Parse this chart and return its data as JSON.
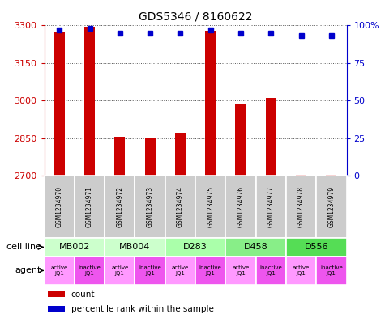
{
  "title": "GDS5346 / 8160622",
  "samples": [
    "GSM1234970",
    "GSM1234971",
    "GSM1234972",
    "GSM1234973",
    "GSM1234974",
    "GSM1234975",
    "GSM1234976",
    "GSM1234977",
    "GSM1234978",
    "GSM1234979"
  ],
  "counts": [
    3275,
    3295,
    2855,
    2850,
    2870,
    3280,
    2985,
    3010,
    2703,
    2704
  ],
  "percentile_rank": [
    97,
    98,
    95,
    95,
    95,
    97,
    95,
    95,
    93,
    93
  ],
  "ylim_left": [
    2700,
    3300
  ],
  "ylim_right": [
    0,
    100
  ],
  "yticks_left": [
    2700,
    2850,
    3000,
    3150,
    3300
  ],
  "yticks_right": [
    0,
    25,
    50,
    75,
    100
  ],
  "cell_lines": [
    {
      "name": "MB002",
      "cols": [
        0,
        1
      ],
      "color": "#ccffcc"
    },
    {
      "name": "MB004",
      "cols": [
        2,
        3
      ],
      "color": "#ccffcc"
    },
    {
      "name": "D283",
      "cols": [
        4,
        5
      ],
      "color": "#aaffaa"
    },
    {
      "name": "D458",
      "cols": [
        6,
        7
      ],
      "color": "#88ee88"
    },
    {
      "name": "D556",
      "cols": [
        8,
        9
      ],
      "color": "#55dd55"
    }
  ],
  "agents": [
    {
      "label": "active\nJQ1",
      "col": 0,
      "color": "#ff99ff"
    },
    {
      "label": "inactive\nJQ1",
      "col": 1,
      "color": "#ee55ee"
    },
    {
      "label": "active\nJQ1",
      "col": 2,
      "color": "#ff99ff"
    },
    {
      "label": "inactive\nJQ1",
      "col": 3,
      "color": "#ee55ee"
    },
    {
      "label": "active\nJQ1",
      "col": 4,
      "color": "#ff99ff"
    },
    {
      "label": "inactive\nJQ1",
      "col": 5,
      "color": "#ee55ee"
    },
    {
      "label": "active\nJQ1",
      "col": 6,
      "color": "#ff99ff"
    },
    {
      "label": "inactive\nJQ1",
      "col": 7,
      "color": "#ee55ee"
    },
    {
      "label": "active\nJQ1",
      "col": 8,
      "color": "#ff99ff"
    },
    {
      "label": "inactive\nJQ1",
      "col": 9,
      "color": "#ee55ee"
    }
  ],
  "bar_color": "#cc0000",
  "dot_color": "#0000cc",
  "bar_width": 0.35,
  "left_axis_color": "#cc0000",
  "right_axis_color": "#0000cc",
  "grid_color": "#555555",
  "sample_bg_color": "#cccccc",
  "sample_border_color": "#ffffff"
}
